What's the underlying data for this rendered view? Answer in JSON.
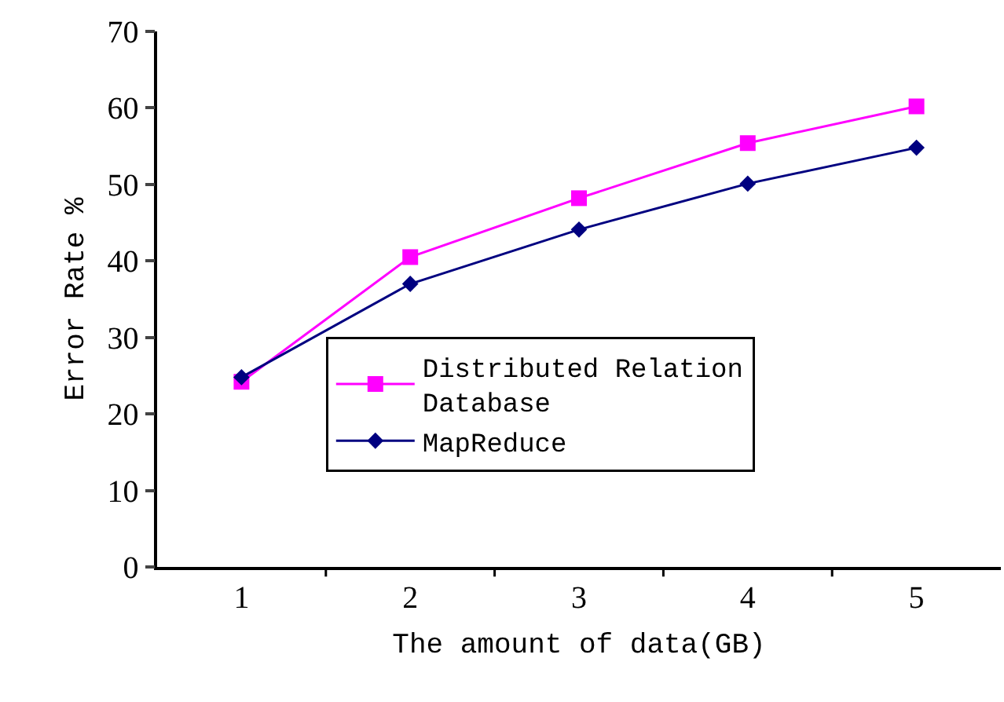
{
  "chart_data": {
    "type": "line",
    "xlabel": "The amount of data(GB)",
    "ylabel": "Error Rate %",
    "categories": [
      "1",
      "2",
      "3",
      "4",
      "5"
    ],
    "series": [
      {
        "name": "Distributed Relation Database",
        "color": "#ff00ff",
        "marker": "square",
        "values": [
          24.2,
          40.5,
          48.2,
          55.4,
          60.2
        ]
      },
      {
        "name": "MapReduce",
        "color": "#000080",
        "marker": "diamond",
        "values": [
          24.8,
          37,
          44.1,
          50.1,
          54.8
        ]
      }
    ],
    "ylim": [
      0,
      70
    ],
    "yticks": [
      0,
      10,
      20,
      30,
      40,
      50,
      60,
      70
    ],
    "legend": "center",
    "line_style": "solid"
  }
}
